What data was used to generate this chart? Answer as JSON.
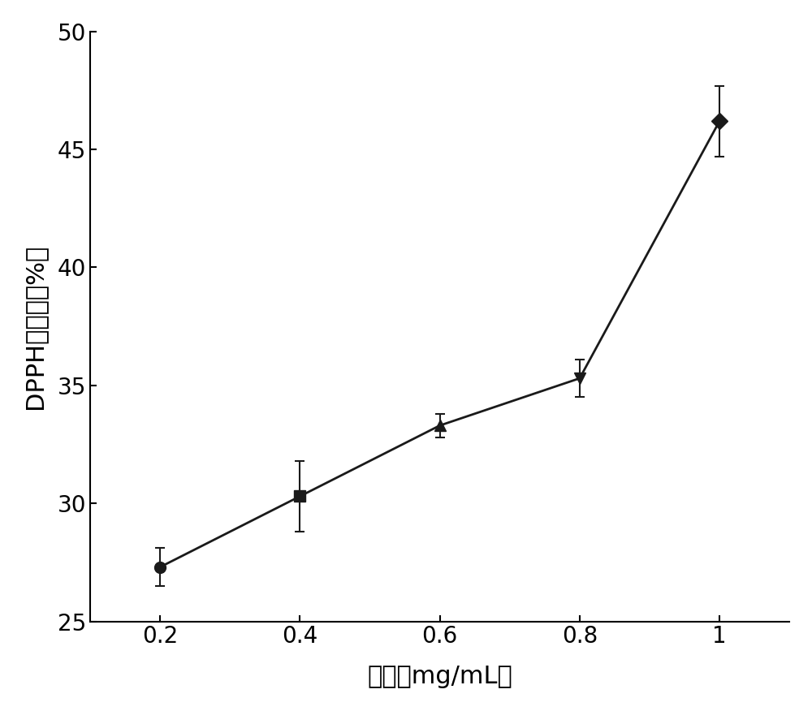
{
  "x": [
    0.2,
    0.4,
    0.6,
    0.8,
    1.0
  ],
  "y": [
    27.3,
    30.3,
    33.3,
    35.3,
    46.2
  ],
  "yerr": [
    0.8,
    1.5,
    0.5,
    0.8,
    1.5
  ],
  "markers": [
    "o",
    "s",
    "^",
    "v",
    "D"
  ],
  "marker_size": 10,
  "line_color": "#1a1a1a",
  "line_width": 2.0,
  "xlabel": "浓度（mg/mL）",
  "ylabel": "DPPH清除率（%）",
  "xlim": [
    0.1,
    1.1
  ],
  "ylim": [
    25,
    50
  ],
  "xticks": [
    0.2,
    0.4,
    0.6,
    0.8,
    1.0
  ],
  "xtick_labels": [
    "0.2",
    "0.4",
    "0.6",
    "0.8",
    "1"
  ],
  "yticks": [
    25,
    30,
    35,
    40,
    45,
    50
  ],
  "xlabel_fontsize": 22,
  "ylabel_fontsize": 22,
  "tick_fontsize": 20,
  "background_color": "#ffffff",
  "capsize": 4,
  "error_linewidth": 1.5
}
